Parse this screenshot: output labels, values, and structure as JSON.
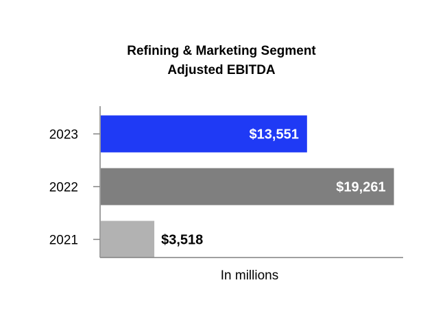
{
  "chart_data": {
    "type": "bar",
    "orientation": "horizontal",
    "title_lines": [
      "Refining & Marketing Segment",
      "Adjusted EBITDA"
    ],
    "categories": [
      "2023",
      "2022",
      "2021"
    ],
    "values": [
      13551,
      19261,
      3518
    ],
    "value_labels": [
      "$13,551",
      "$19,261",
      "$3,518"
    ],
    "bar_colors": [
      "#1f3af5",
      "#7f7f7f",
      "#b2b2b2"
    ],
    "value_label_colors": [
      "#ffffff",
      "#ffffff",
      "#000000"
    ],
    "value_label_placement": [
      "inside",
      "inside",
      "outside"
    ],
    "xlabel": "In millions",
    "ylabel": "",
    "xlim": [
      0,
      20000
    ],
    "grid": false
  }
}
